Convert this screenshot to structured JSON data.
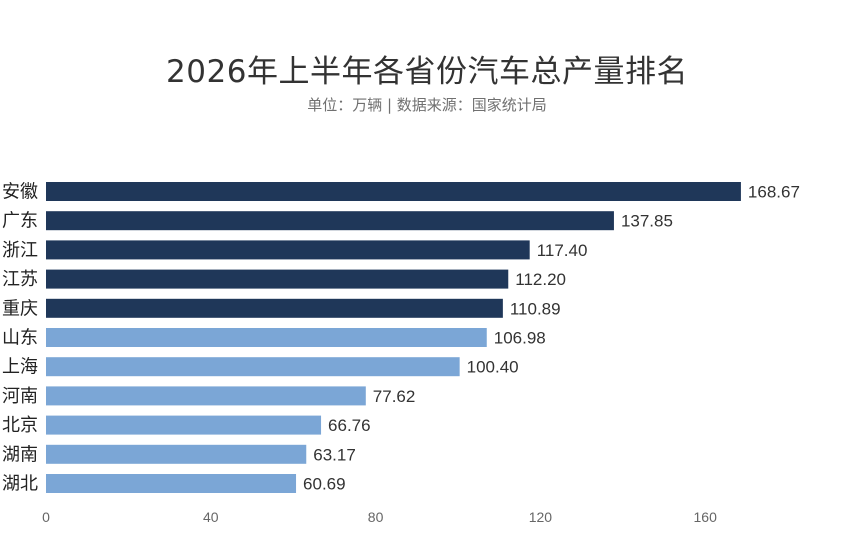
{
  "chart_data": {
    "type": "bar",
    "orientation": "horizontal",
    "title": "2026年上半年各省份汽车总产量排名",
    "subtitle": "单位：万辆  |  数据来源：国家统计局",
    "categories": [
      "安徽",
      "广东",
      "浙江",
      "江苏",
      "重庆",
      "山东",
      "上海",
      "河南",
      "北京",
      "湖南",
      "湖北"
    ],
    "values": [
      168.67,
      137.85,
      117.4,
      112.2,
      110.89,
      106.98,
      100.4,
      77.62,
      66.76,
      63.17,
      60.69
    ],
    "value_labels": [
      "168.67",
      "137.85",
      "117.40",
      "112.20",
      "110.89",
      "106.98",
      "100.40",
      "77.62",
      "66.76",
      "63.17",
      "60.69"
    ],
    "xlim": [
      0,
      200
    ],
    "xticks": [
      0,
      40,
      80,
      120,
      160
    ],
    "xtick_labels": [
      "0",
      "40",
      "80",
      "120",
      "160"
    ],
    "grid": false,
    "legend": "none",
    "highlight_count": 5,
    "colors": {
      "highlight": "#1f3759",
      "normal": "#7ba6d6"
    }
  }
}
